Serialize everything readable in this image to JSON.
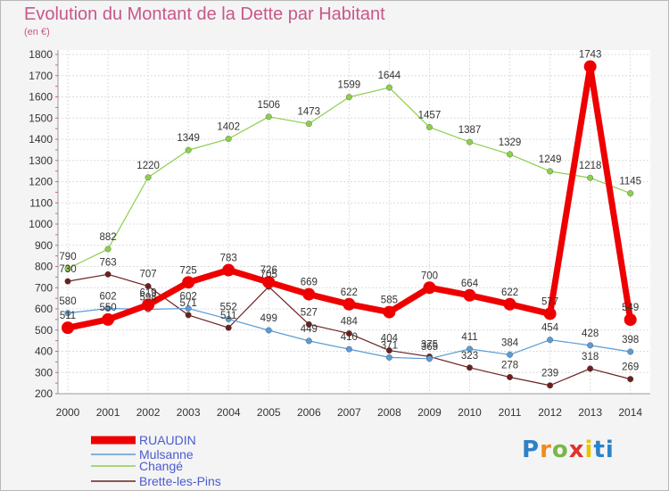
{
  "chart_data": {
    "type": "line",
    "title": "Evolution du Montant de la Dette par Habitant",
    "subtitle": "(en €)",
    "xlabel": "",
    "ylabel": "",
    "ylim": [
      200,
      1800
    ],
    "yticks": [
      200,
      300,
      400,
      500,
      600,
      700,
      800,
      900,
      1000,
      1100,
      1200,
      1300,
      1400,
      1500,
      1600,
      1700,
      1800
    ],
    "x": [
      "2000",
      "2001",
      "2002",
      "2003",
      "2004",
      "2005",
      "2006",
      "2007",
      "2008",
      "2009",
      "2010",
      "2011",
      "2012",
      "2013",
      "2014"
    ],
    "grid": true,
    "legend_position": "bottom-left",
    "series": [
      {
        "name": "RUAUDIN",
        "color": "#ee0000",
        "values": [
          511,
          550,
          619,
          725,
          783,
          726,
          669,
          622,
          585,
          700,
          664,
          622,
          577,
          1743,
          549
        ],
        "breaks": [
          [
            12,
            13
          ]
        ]
      },
      {
        "name": "Mulsanne",
        "color": "#5b9bd5",
        "values": [
          580,
          602,
          598,
          602,
          552,
          499,
          449,
          410,
          371,
          365,
          411,
          384,
          454,
          428,
          398
        ]
      },
      {
        "name": "Changé",
        "color": "#8ccf4c",
        "values": [
          790,
          882,
          1220,
          1349,
          1402,
          1506,
          1473,
          1599,
          1644,
          1457,
          1387,
          1329,
          1249,
          1218,
          1145
        ]
      },
      {
        "name": "Brette-les-Pins",
        "color": "#6b2020",
        "values": [
          730,
          763,
          707,
          571,
          511,
          705,
          527,
          484,
          404,
          375,
          323,
          278,
          239,
          318,
          269
        ]
      }
    ]
  },
  "logo": {
    "text": "Proxiti"
  }
}
